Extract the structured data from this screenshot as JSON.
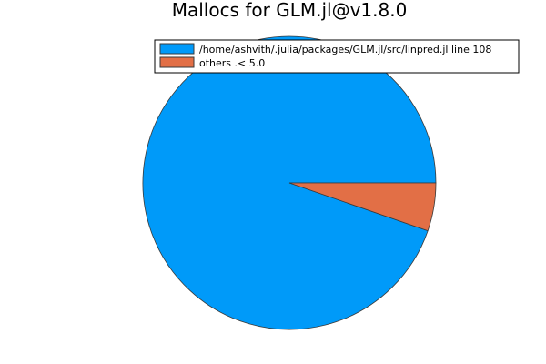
{
  "chart_data": {
    "type": "pie",
    "title": "Mallocs for GLM.jl@v1.8.0",
    "categories": [
      "/home/ashvith/.julia/packages/GLM.jl/src/linpred.jl line 108",
      "others .< 5.0"
    ],
    "values": [
      94.7,
      5.3
    ],
    "colors": [
      "#009af9",
      "#e26f46"
    ],
    "edge_color": "#3a3a3a",
    "legend": "top-right"
  }
}
